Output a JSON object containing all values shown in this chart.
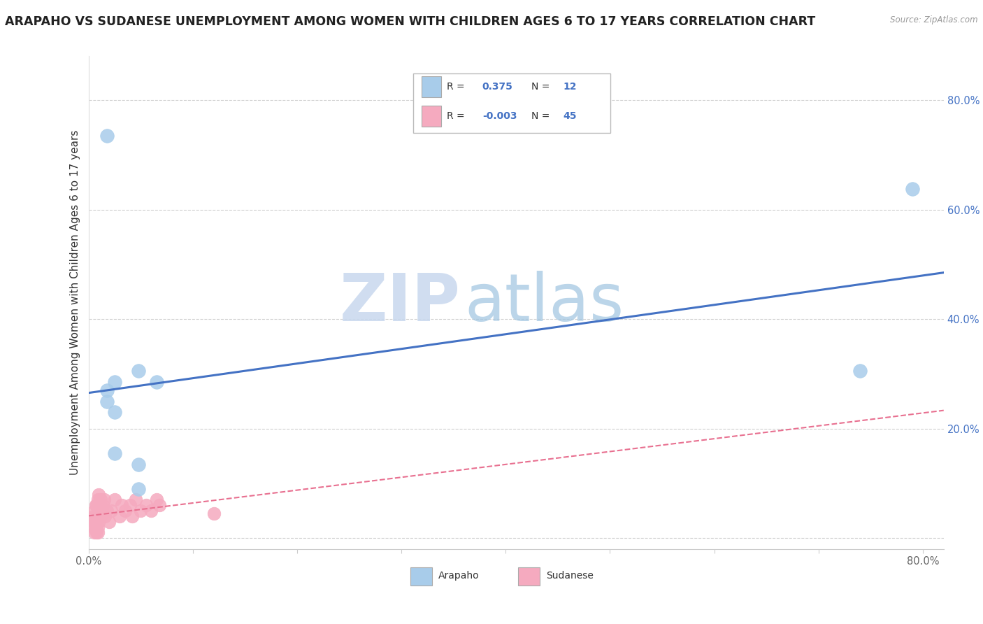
{
  "title": "ARAPAHO VS SUDANESE UNEMPLOYMENT AMONG WOMEN WITH CHILDREN AGES 6 TO 17 YEARS CORRELATION CHART",
  "source": "Source: ZipAtlas.com",
  "ylabel": "Unemployment Among Women with Children Ages 6 to 17 years",
  "watermark_zip": "ZIP",
  "watermark_atlas": "atlas",
  "xlim": [
    0.0,
    0.82
  ],
  "ylim": [
    -0.02,
    0.88
  ],
  "arapaho_color": "#A8CCEA",
  "sudanese_color": "#F5AABF",
  "arapaho_line_color": "#4472C4",
  "sudanese_line_color": "#E87090",
  "legend_arapaho_r": "0.375",
  "legend_arapaho_n": "12",
  "legend_sudanese_r": "-0.003",
  "legend_sudanese_n": "45",
  "arapaho_x": [
    0.018,
    0.018,
    0.018,
    0.025,
    0.025,
    0.025,
    0.048,
    0.048,
    0.048,
    0.065,
    0.79,
    0.74
  ],
  "arapaho_y": [
    0.735,
    0.27,
    0.25,
    0.285,
    0.23,
    0.155,
    0.305,
    0.135,
    0.09,
    0.285,
    0.638,
    0.305
  ],
  "sudanese_x": [
    0.005,
    0.005,
    0.005,
    0.006,
    0.006,
    0.006,
    0.007,
    0.007,
    0.007,
    0.007,
    0.008,
    0.008,
    0.008,
    0.008,
    0.009,
    0.009,
    0.009,
    0.009,
    0.009,
    0.01,
    0.01,
    0.01,
    0.01,
    0.012,
    0.012,
    0.013,
    0.014,
    0.015,
    0.016,
    0.018,
    0.02,
    0.022,
    0.025,
    0.03,
    0.032,
    0.035,
    0.04,
    0.042,
    0.045,
    0.05,
    0.055,
    0.06,
    0.065,
    0.068,
    0.12
  ],
  "sudanese_y": [
    0.02,
    0.03,
    0.04,
    0.01,
    0.03,
    0.05,
    0.02,
    0.03,
    0.04,
    0.06,
    0.01,
    0.03,
    0.04,
    0.06,
    0.01,
    0.02,
    0.04,
    0.05,
    0.07,
    0.03,
    0.05,
    0.06,
    0.08,
    0.04,
    0.07,
    0.05,
    0.06,
    0.07,
    0.04,
    0.05,
    0.03,
    0.05,
    0.07,
    0.04,
    0.06,
    0.05,
    0.06,
    0.04,
    0.07,
    0.05,
    0.06,
    0.05,
    0.07,
    0.06,
    0.045
  ],
  "background_color": "#FFFFFF",
  "grid_color": "#D0D0D0",
  "title_fontsize": 12.5,
  "axis_label_fontsize": 11,
  "tick_fontsize": 10.5,
  "watermark_fontsize_zip": 68,
  "watermark_fontsize_atlas": 68
}
